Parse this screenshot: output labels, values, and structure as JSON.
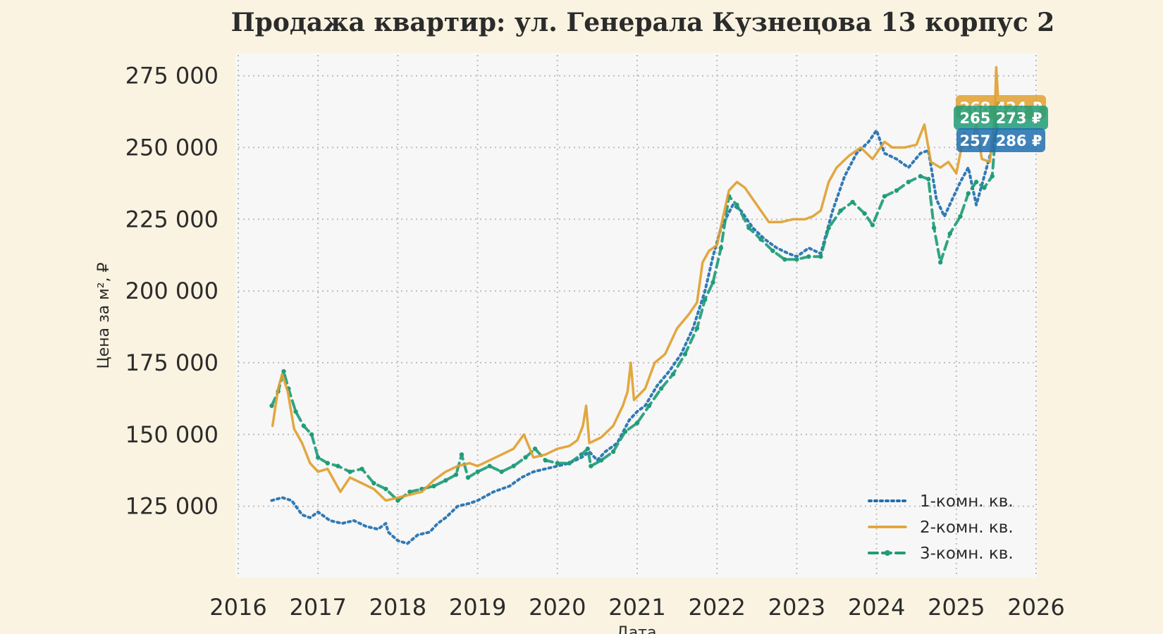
{
  "chart_data": {
    "type": "line",
    "title": "Продажа квартир: ул. Генерала Кузнецова 13 корпус 2",
    "xlabel": "Дата",
    "ylabel": "Цена за м², ₽",
    "xlim": [
      2016,
      2026
    ],
    "ylim": [
      106000,
      283000
    ],
    "x_ticks": [
      2016,
      2017,
      2018,
      2019,
      2020,
      2021,
      2022,
      2023,
      2024,
      2025,
      2026
    ],
    "x_tick_labels": [
      "2016",
      "2017",
      "2018",
      "2019",
      "2020",
      "2021",
      "2022",
      "2023",
      "2024",
      "2025",
      "2026"
    ],
    "y_ticks": [
      125000,
      150000,
      175000,
      200000,
      225000,
      250000,
      275000
    ],
    "y_tick_labels": [
      "125 000",
      "150 000",
      "175 000",
      "200 000",
      "225 000",
      "250 000",
      "275 000"
    ],
    "grid": true,
    "legend_position": "bottom-right",
    "series": [
      {
        "name": "1-комн. кв.",
        "color": "#1f6fb0",
        "style": "dotted",
        "end_label": "257 286 ₽",
        "points": [
          [
            2016.42,
            127000
          ],
          [
            2016.55,
            128000
          ],
          [
            2016.67,
            127000
          ],
          [
            2016.8,
            122000
          ],
          [
            2016.9,
            121000
          ],
          [
            2017.0,
            123000
          ],
          [
            2017.15,
            120000
          ],
          [
            2017.3,
            119000
          ],
          [
            2017.45,
            120000
          ],
          [
            2017.6,
            118000
          ],
          [
            2017.75,
            117000
          ],
          [
            2017.85,
            119000
          ],
          [
            2017.88,
            116000
          ],
          [
            2018.0,
            113000
          ],
          [
            2018.12,
            112000
          ],
          [
            2018.25,
            115000
          ],
          [
            2018.4,
            116000
          ],
          [
            2018.5,
            119000
          ],
          [
            2018.6,
            121000
          ],
          [
            2018.75,
            125000
          ],
          [
            2018.9,
            126000
          ],
          [
            2019.0,
            127000
          ],
          [
            2019.2,
            130000
          ],
          [
            2019.4,
            132000
          ],
          [
            2019.55,
            135000
          ],
          [
            2019.7,
            137000
          ],
          [
            2019.85,
            138000
          ],
          [
            2020.0,
            139000
          ],
          [
            2020.15,
            140000
          ],
          [
            2020.3,
            142000
          ],
          [
            2020.4,
            144000
          ],
          [
            2020.5,
            141000
          ],
          [
            2020.6,
            144000
          ],
          [
            2020.75,
            147000
          ],
          [
            2020.9,
            155000
          ],
          [
            2021.0,
            158000
          ],
          [
            2021.1,
            160000
          ],
          [
            2021.25,
            167000
          ],
          [
            2021.4,
            172000
          ],
          [
            2021.55,
            178000
          ],
          [
            2021.7,
            187000
          ],
          [
            2021.85,
            200000
          ],
          [
            2021.95,
            212000
          ],
          [
            2022.05,
            222000
          ],
          [
            2022.2,
            230000
          ],
          [
            2022.3,
            228000
          ],
          [
            2022.45,
            222000
          ],
          [
            2022.6,
            218000
          ],
          [
            2022.75,
            215000
          ],
          [
            2022.9,
            213000
          ],
          [
            2023.0,
            212000
          ],
          [
            2023.15,
            215000
          ],
          [
            2023.3,
            213000
          ],
          [
            2023.45,
            228000
          ],
          [
            2023.6,
            240000
          ],
          [
            2023.75,
            248000
          ],
          [
            2023.9,
            252000
          ],
          [
            2024.0,
            256000
          ],
          [
            2024.1,
            248000
          ],
          [
            2024.25,
            246000
          ],
          [
            2024.4,
            243000
          ],
          [
            2024.55,
            248000
          ],
          [
            2024.65,
            249000
          ],
          [
            2024.75,
            232000
          ],
          [
            2024.85,
            226000
          ],
          [
            2024.95,
            232000
          ],
          [
            2025.05,
            238000
          ],
          [
            2025.15,
            243000
          ],
          [
            2025.25,
            230000
          ],
          [
            2025.35,
            240000
          ],
          [
            2025.45,
            250000
          ],
          [
            2025.52,
            257286
          ]
        ]
      },
      {
        "name": "2-комн. кв.",
        "color": "#e0a030",
        "style": "solid",
        "end_label": "268 424 ₽",
        "points": [
          [
            2016.43,
            153000
          ],
          [
            2016.5,
            166000
          ],
          [
            2016.55,
            171000
          ],
          [
            2016.62,
            165000
          ],
          [
            2016.7,
            152000
          ],
          [
            2016.8,
            147000
          ],
          [
            2016.9,
            140000
          ],
          [
            2017.0,
            137000
          ],
          [
            2017.12,
            138000
          ],
          [
            2017.28,
            130000
          ],
          [
            2017.4,
            135000
          ],
          [
            2017.55,
            133000
          ],
          [
            2017.7,
            131000
          ],
          [
            2017.85,
            127000
          ],
          [
            2018.0,
            128000
          ],
          [
            2018.15,
            129000
          ],
          [
            2018.3,
            130000
          ],
          [
            2018.45,
            134000
          ],
          [
            2018.6,
            137000
          ],
          [
            2018.75,
            139000
          ],
          [
            2018.9,
            140000
          ],
          [
            2019.0,
            139000
          ],
          [
            2019.15,
            141000
          ],
          [
            2019.3,
            143000
          ],
          [
            2019.45,
            145000
          ],
          [
            2019.58,
            150000
          ],
          [
            2019.7,
            142000
          ],
          [
            2019.85,
            143000
          ],
          [
            2020.0,
            145000
          ],
          [
            2020.15,
            146000
          ],
          [
            2020.25,
            148000
          ],
          [
            2020.32,
            153000
          ],
          [
            2020.36,
            160000
          ],
          [
            2020.4,
            147000
          ],
          [
            2020.55,
            149000
          ],
          [
            2020.7,
            153000
          ],
          [
            2020.82,
            160000
          ],
          [
            2020.88,
            165000
          ],
          [
            2020.92,
            175000
          ],
          [
            2020.96,
            162000
          ],
          [
            2021.1,
            166000
          ],
          [
            2021.22,
            175000
          ],
          [
            2021.35,
            178000
          ],
          [
            2021.5,
            187000
          ],
          [
            2021.65,
            192000
          ],
          [
            2021.75,
            196000
          ],
          [
            2021.82,
            210000
          ],
          [
            2021.9,
            214000
          ],
          [
            2022.0,
            216000
          ],
          [
            2022.07,
            225000
          ],
          [
            2022.15,
            235000
          ],
          [
            2022.25,
            238000
          ],
          [
            2022.35,
            236000
          ],
          [
            2022.5,
            230000
          ],
          [
            2022.65,
            224000
          ],
          [
            2022.8,
            224000
          ],
          [
            2022.95,
            225000
          ],
          [
            2023.1,
            225000
          ],
          [
            2023.2,
            226000
          ],
          [
            2023.3,
            228000
          ],
          [
            2023.4,
            238000
          ],
          [
            2023.5,
            243000
          ],
          [
            2023.65,
            247000
          ],
          [
            2023.8,
            250000
          ],
          [
            2023.95,
            246000
          ],
          [
            2024.1,
            252000
          ],
          [
            2024.2,
            250000
          ],
          [
            2024.35,
            250000
          ],
          [
            2024.5,
            251000
          ],
          [
            2024.6,
            258000
          ],
          [
            2024.68,
            245000
          ],
          [
            2024.8,
            243000
          ],
          [
            2024.9,
            245000
          ],
          [
            2025.0,
            241000
          ],
          [
            2025.1,
            255000
          ],
          [
            2025.18,
            250000
          ],
          [
            2025.25,
            258000
          ],
          [
            2025.32,
            246000
          ],
          [
            2025.42,
            245000
          ],
          [
            2025.48,
            260000
          ],
          [
            2025.5,
            278000
          ],
          [
            2025.52,
            268424
          ]
        ]
      },
      {
        "name": "3-комн. кв.",
        "color": "#1f9c78",
        "style": "dashed",
        "end_label": "265 273 ₽",
        "points": [
          [
            2016.42,
            160000
          ],
          [
            2016.5,
            165000
          ],
          [
            2016.57,
            172000
          ],
          [
            2016.63,
            166000
          ],
          [
            2016.72,
            158000
          ],
          [
            2016.82,
            153000
          ],
          [
            2016.92,
            150000
          ],
          [
            2017.0,
            142000
          ],
          [
            2017.12,
            140000
          ],
          [
            2017.25,
            139000
          ],
          [
            2017.4,
            137000
          ],
          [
            2017.55,
            138000
          ],
          [
            2017.7,
            133000
          ],
          [
            2017.85,
            131000
          ],
          [
            2018.0,
            127000
          ],
          [
            2018.15,
            130000
          ],
          [
            2018.3,
            131000
          ],
          [
            2018.45,
            132000
          ],
          [
            2018.6,
            134000
          ],
          [
            2018.73,
            136000
          ],
          [
            2018.8,
            143000
          ],
          [
            2018.88,
            135000
          ],
          [
            2019.0,
            137000
          ],
          [
            2019.15,
            139000
          ],
          [
            2019.3,
            137000
          ],
          [
            2019.45,
            139000
          ],
          [
            2019.6,
            142000
          ],
          [
            2019.72,
            145000
          ],
          [
            2019.85,
            141000
          ],
          [
            2020.0,
            140000
          ],
          [
            2020.15,
            140000
          ],
          [
            2020.3,
            143000
          ],
          [
            2020.38,
            145000
          ],
          [
            2020.42,
            139000
          ],
          [
            2020.55,
            141000
          ],
          [
            2020.7,
            144000
          ],
          [
            2020.85,
            151000
          ],
          [
            2021.0,
            154000
          ],
          [
            2021.15,
            160000
          ],
          [
            2021.3,
            166000
          ],
          [
            2021.45,
            171000
          ],
          [
            2021.6,
            178000
          ],
          [
            2021.75,
            187000
          ],
          [
            2021.85,
            197000
          ],
          [
            2021.95,
            203000
          ],
          [
            2022.05,
            215000
          ],
          [
            2022.15,
            233000
          ],
          [
            2022.25,
            230000
          ],
          [
            2022.4,
            222000
          ],
          [
            2022.55,
            218000
          ],
          [
            2022.7,
            214000
          ],
          [
            2022.85,
            211000
          ],
          [
            2023.0,
            211000
          ],
          [
            2023.15,
            212000
          ],
          [
            2023.3,
            212000
          ],
          [
            2023.4,
            222000
          ],
          [
            2023.55,
            228000
          ],
          [
            2023.7,
            231000
          ],
          [
            2023.85,
            227000
          ],
          [
            2023.95,
            223000
          ],
          [
            2024.1,
            233000
          ],
          [
            2024.25,
            235000
          ],
          [
            2024.4,
            238000
          ],
          [
            2024.55,
            240000
          ],
          [
            2024.65,
            239000
          ],
          [
            2024.72,
            222000
          ],
          [
            2024.8,
            210000
          ],
          [
            2024.92,
            220000
          ],
          [
            2025.05,
            226000
          ],
          [
            2025.15,
            234000
          ],
          [
            2025.25,
            238000
          ],
          [
            2025.35,
            236000
          ],
          [
            2025.45,
            240000
          ],
          [
            2025.52,
            265273
          ]
        ]
      }
    ]
  }
}
